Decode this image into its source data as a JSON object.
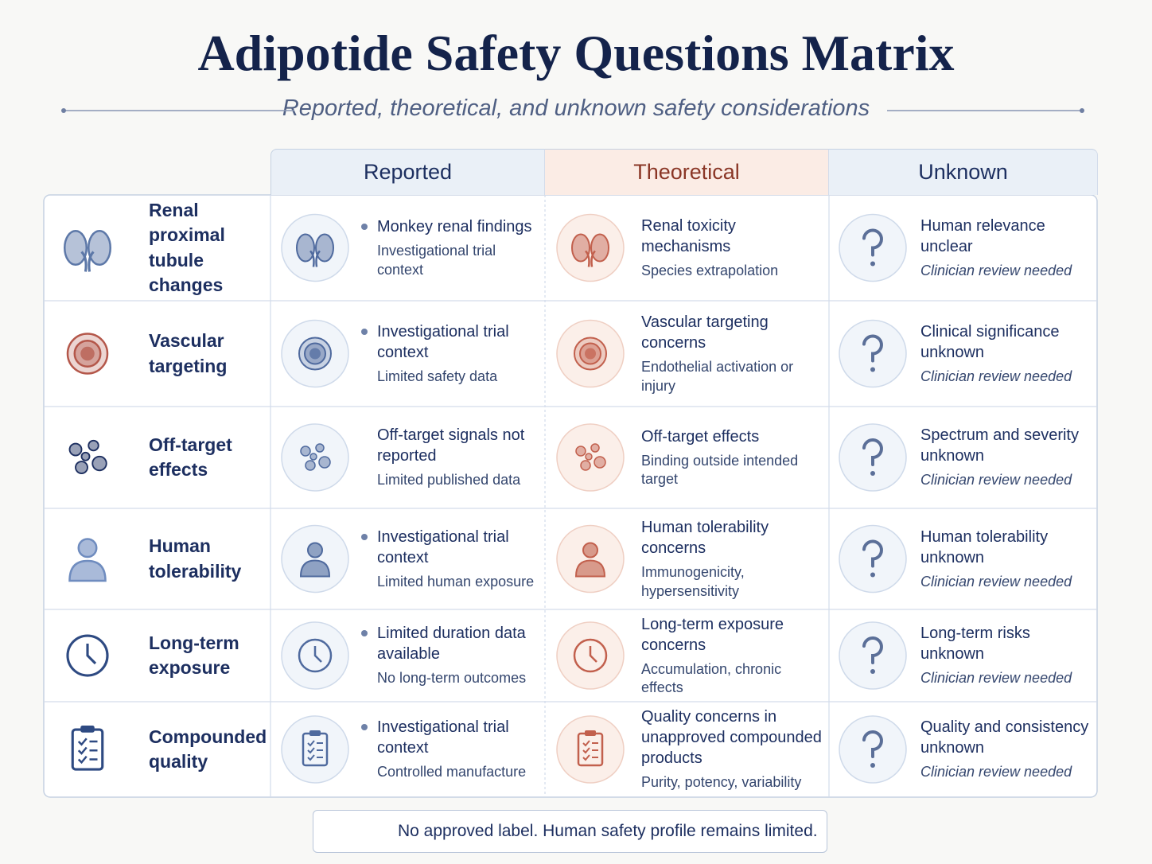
{
  "header": {
    "title": "Adipotide Safety Questions Matrix",
    "subtitle": "Reported, theoretical, and unknown safety considerations"
  },
  "table": {
    "columns": [
      "Reported",
      "Theoretical",
      "Unknown"
    ],
    "rows": [
      {
        "label": "Renal proximal tubule changes",
        "cells": [
          {
            "title": "Monkey renal findings",
            "note": "Investigational trial context"
          },
          {
            "title": "Renal toxicity mechanisms",
            "note": "Species extrapolation"
          },
          {
            "title": "Human relevance unclear",
            "note": "Clinician review needed"
          }
        ]
      },
      {
        "label": "Vascular targeting",
        "cells": [
          {
            "title": "Investigational trial context",
            "note": "Limited safety data"
          },
          {
            "title": "Vascular targeting concerns",
            "note": "Endothelial activation or injury"
          },
          {
            "title": "Clinical significance unknown",
            "note": "Clinician review needed"
          }
        ]
      },
      {
        "label": "Off-target effects",
        "cells": [
          {
            "title": "Off-target signals not reported",
            "note": "Limited published data"
          },
          {
            "title": "Off-target effects",
            "note": "Binding outside intended target"
          },
          {
            "title": "Spectrum and severity unknown",
            "note": "Clinician review needed"
          }
        ]
      },
      {
        "label": "Human tolerability",
        "cells": [
          {
            "title": "Investigational trial context",
            "note": "Limited human exposure"
          },
          {
            "title": "Human tolerability concerns",
            "note": "Immunogenicity, hypersensitivity"
          },
          {
            "title": "Human tolerability unknown",
            "note": "Clinician review needed"
          }
        ]
      },
      {
        "label": "Long-term exposure",
        "cells": [
          {
            "title": "Limited duration data available",
            "note": "No long-term outcomes"
          },
          {
            "title": "Long-term exposure concerns",
            "note": "Accumulation, chronic effects"
          },
          {
            "title": "Long-term risks unknown",
            "note": "Clinician review needed"
          }
        ]
      },
      {
        "label": "Compounded quality",
        "cells": [
          {
            "title": "Investigational trial context",
            "note": "Controlled manufacture"
          },
          {
            "title": "Quality concerns in unapproved compounded products",
            "note": "Purity, potency, variability"
          },
          {
            "title": "Quality and consistency unknown",
            "note": "Clinician review needed"
          }
        ]
      }
    ]
  },
  "footer": {
    "note": "No approved label. Human safety profile remains limited."
  }
}
